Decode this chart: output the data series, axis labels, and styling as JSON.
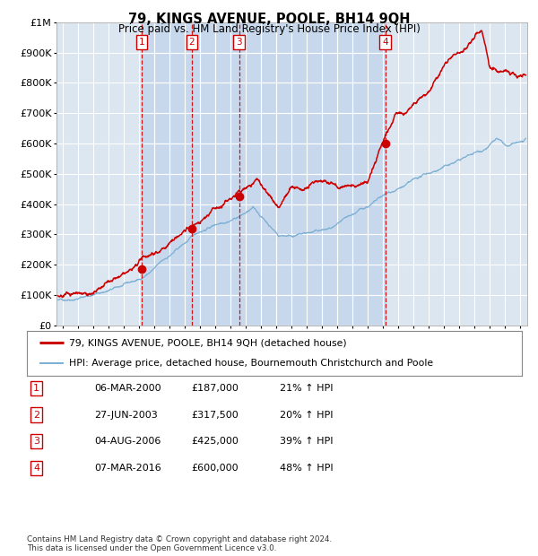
{
  "title": "79, KINGS AVENUE, POOLE, BH14 9QH",
  "subtitle": "Price paid vs. HM Land Registry's House Price Index (HPI)",
  "ylim": [
    0,
    1000000
  ],
  "yticks": [
    0,
    100000,
    200000,
    300000,
    400000,
    500000,
    600000,
    700000,
    800000,
    900000,
    1000000
  ],
  "ytick_labels": [
    "£0",
    "£100K",
    "£200K",
    "£300K",
    "£400K",
    "£500K",
    "£600K",
    "£700K",
    "£800K",
    "£900K",
    "£1M"
  ],
  "xlim_start": 1994.6,
  "xlim_end": 2025.5,
  "background_color": "#ffffff",
  "plot_bg_color": "#dce6f1",
  "grid_color": "#ffffff",
  "sale_color": "#cc0000",
  "hpi_color": "#7bafd4",
  "purchase_dates": [
    2000.18,
    2003.49,
    2006.59,
    2016.18
  ],
  "purchase_prices": [
    187000,
    317500,
    425000,
    600000
  ],
  "purchase_labels": [
    "1",
    "2",
    "3",
    "4"
  ],
  "legend_sale_label": "79, KINGS AVENUE, POOLE, BH14 9QH (detached house)",
  "legend_hpi_label": "HPI: Average price, detached house, Bournemouth Christchurch and Poole",
  "table_entries": [
    {
      "num": "1",
      "date": "06-MAR-2000",
      "price": "£187,000",
      "pct": "21% ↑ HPI"
    },
    {
      "num": "2",
      "date": "27-JUN-2003",
      "price": "£317,500",
      "pct": "20% ↑ HPI"
    },
    {
      "num": "3",
      "date": "04-AUG-2006",
      "price": "£425,000",
      "pct": "39% ↑ HPI"
    },
    {
      "num": "4",
      "date": "07-MAR-2016",
      "price": "£600,000",
      "pct": "48% ↑ HPI"
    }
  ],
  "footnote1": "Contains HM Land Registry data © Crown copyright and database right 2024.",
  "footnote2": "This data is licensed under the Open Government Licence v3.0.",
  "shaded_region_start": 2000.18,
  "shaded_region_end": 2016.18
}
